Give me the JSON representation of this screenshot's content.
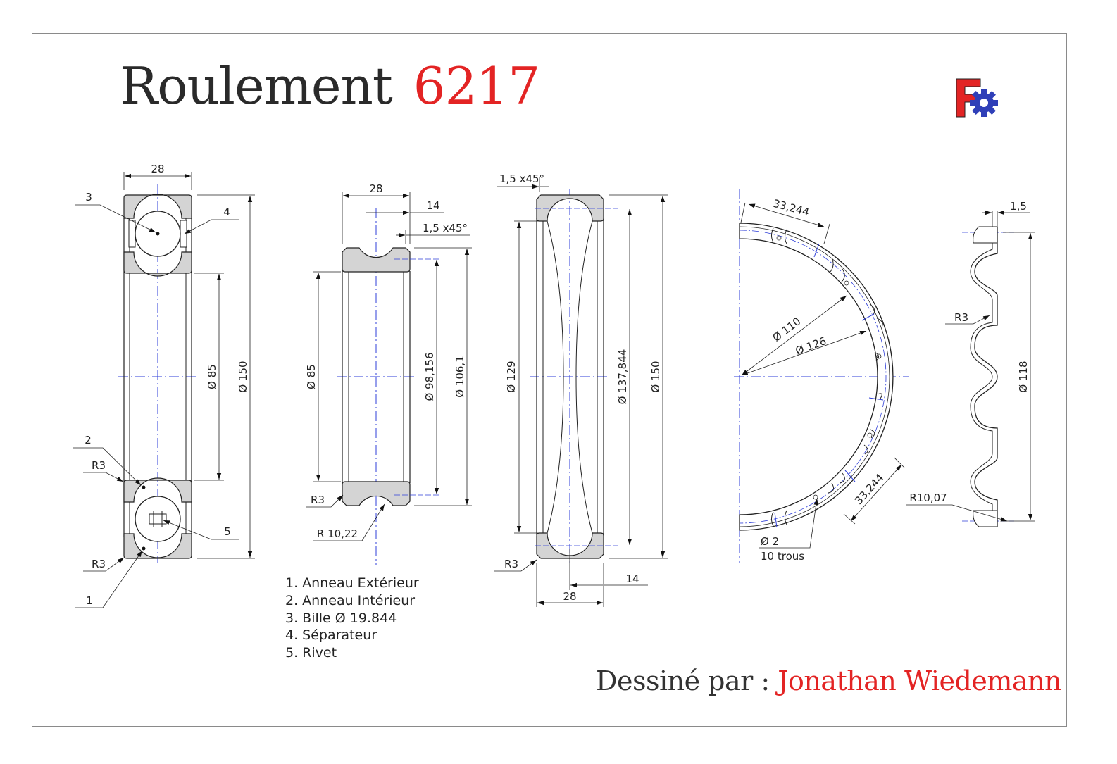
{
  "title": {
    "text": "Roulement",
    "number": "6217"
  },
  "credit": {
    "label": "Dessiné par :",
    "author": "Jonathan Wiedemann"
  },
  "legend": [
    "1. Anneau Extérieur",
    "2. Anneau Intérieur",
    "3. Bille Ø 19.844",
    "4. Séparateur",
    "5. Rivet"
  ],
  "view1": {
    "width": "28",
    "d_inner": "Ø 85",
    "d_outer": "Ø 150",
    "radius_top": "R3",
    "radius_bottom": "R3",
    "callout_1": "1",
    "callout_2": "2",
    "callout_3": "3",
    "callout_4": "4",
    "callout_5": "5"
  },
  "view2": {
    "width": "28",
    "half": "14",
    "chamfer": "1,5 x45°",
    "d_bore": "Ø 85",
    "d_race": "Ø 98,156",
    "d_shoulder": "Ø 106,1",
    "radius": "R3",
    "groove": "R 10,22"
  },
  "view3": {
    "chamfer": "1,5 x45°",
    "d_shoulder": "Ø 129",
    "d_race": "Ø 137,844",
    "d_outer": "Ø 150",
    "radius": "R3",
    "half": "14",
    "width": "28"
  },
  "view4": {
    "pitch_top": "33,244",
    "pitch_bottom": "33,244",
    "d_inner": "Ø 110",
    "d_outer": "Ø 126",
    "hole": "Ø 2",
    "holes_count": "10 trous"
  },
  "view5": {
    "thickness": "1,5",
    "radius_small": "R3",
    "radius_large": "R10,07",
    "diameter": "Ø 118"
  },
  "colors": {
    "title_red": "#e32424",
    "section_fill": "#d4d4d4",
    "centerline_blue": "#2f3fd8",
    "logo_red": "#e32424",
    "logo_blue": "#2f3fb8"
  },
  "logo": {
    "name": "freecad-logo-icon"
  }
}
